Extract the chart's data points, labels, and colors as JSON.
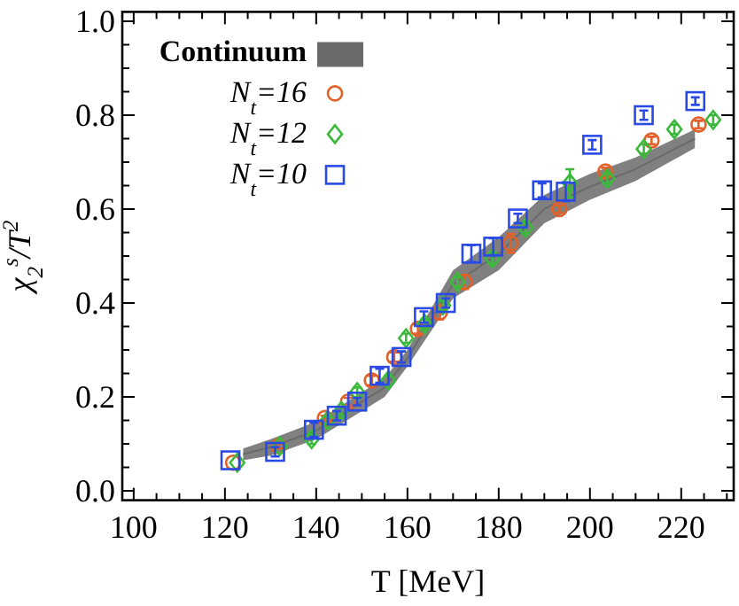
{
  "chart_data": {
    "type": "scatter",
    "xlabel": "T [MeV]",
    "ylabel": "χ$_{2}$$^{s}$/T$^{2}$",
    "legend": "top left",
    "xlim": [
      97.5,
      231.5
    ],
    "ylim": [
      -0.02,
      1.02
    ],
    "xticks": [
      100,
      {
        "value": 105,
        "label": null
      },
      {
        "value": 110,
        "label": null
      },
      {
        "value": 115,
        "label": null
      },
      120,
      {
        "value": 125,
        "label": null
      },
      {
        "value": 130,
        "label": null
      },
      {
        "value": 135,
        "label": null
      },
      140,
      {
        "value": 145,
        "label": null
      },
      {
        "value": 150,
        "label": null
      },
      {
        "value": 155,
        "label": null
      },
      160,
      {
        "value": 165,
        "label": null
      },
      {
        "value": 170,
        "label": null
      },
      {
        "value": 175,
        "label": null
      },
      180,
      {
        "value": 185,
        "label": null
      },
      {
        "value": 190,
        "label": null
      },
      {
        "value": 195,
        "label": null
      },
      200,
      {
        "value": 205,
        "label": null
      },
      {
        "value": 210,
        "label": null
      },
      {
        "value": 215,
        "label": null
      },
      220,
      {
        "value": 225,
        "label": null
      },
      {
        "value": 230,
        "label": null
      }
    ],
    "yticks": [
      {
        "value": 0,
        "label": "0.0"
      },
      {
        "value": 0.05,
        "label": null
      },
      {
        "value": 0.1,
        "label": null
      },
      {
        "value": 0.15,
        "label": null
      },
      0.2,
      {
        "value": 0.25,
        "label": null
      },
      {
        "value": 0.3,
        "label": null
      },
      {
        "value": 0.35,
        "label": null
      },
      0.4,
      {
        "value": 0.45,
        "label": null
      },
      {
        "value": 0.5,
        "label": null
      },
      {
        "value": 0.55,
        "label": null
      },
      0.6,
      {
        "value": 0.65,
        "label": null
      },
      {
        "value": 0.7,
        "label": null
      },
      {
        "value": 0.75,
        "label": null
      },
      0.8,
      {
        "value": 0.85,
        "label": null
      },
      {
        "value": 0.9,
        "label": null
      },
      {
        "value": 0.95,
        "label": null
      },
      {
        "value": 1,
        "label": "1.0"
      }
    ],
    "series": [
      {
        "name": "Continuum",
        "type": "line",
        "color": "#6a6a6a",
        "x": [
          124,
          130,
          140,
          150,
          155,
          160,
          170,
          180,
          190,
          200,
          210,
          223
        ],
        "values": [
          0.078,
          0.093,
          0.128,
          0.19,
          0.22,
          0.283,
          0.44,
          0.505,
          0.6,
          0.648,
          0.685,
          0.75
        ],
        "lower": [
          0.065,
          0.075,
          0.11,
          0.17,
          0.2,
          0.265,
          0.41,
          0.47,
          0.57,
          0.62,
          0.66,
          0.73
        ],
        "upper": [
          0.09,
          0.11,
          0.147,
          0.21,
          0.24,
          0.3,
          0.47,
          0.54,
          0.63,
          0.675,
          0.71,
          0.77
        ]
      },
      {
        "name": "N$_{t}$=16",
        "color": "#e0622a",
        "marker": "circle",
        "x": [
          121.8,
          131.8,
          141.9,
          147,
          152.2,
          157.1,
          162.3,
          167.1,
          172.5,
          182.6,
          193.3,
          203.4,
          213.5,
          223.8
        ],
        "values": [
          0.06,
          0.095,
          0.155,
          0.19,
          0.235,
          0.285,
          0.345,
          0.38,
          0.445,
          0.527,
          0.6,
          0.68,
          0.746,
          0.78
        ],
        "errors": [
          null,
          0.005,
          0.005,
          0.008,
          0.01,
          0.01,
          0.01,
          0.015,
          0.015,
          0.02,
          0.008,
          0.008,
          0.008,
          0.008
        ]
      },
      {
        "name": "N$_{t}$=12",
        "color": "#3cb93c",
        "marker": "diamond",
        "x": [
          122.7,
          132,
          139,
          142.5,
          145.5,
          149,
          155.8,
          159.7,
          163.8,
          167.8,
          171,
          178.6,
          185.9,
          195.6,
          203.8,
          211.8,
          218.5,
          227
        ],
        "values": [
          0.06,
          0.095,
          0.11,
          0.15,
          0.17,
          0.21,
          0.235,
          0.325,
          0.355,
          0.395,
          0.445,
          0.495,
          0.56,
          0.655,
          0.665,
          0.728,
          0.77,
          0.79
        ],
        "errors": [
          null,
          null,
          0.01,
          0.008,
          0.008,
          0.01,
          0.01,
          0.01,
          0.01,
          0.01,
          0.01,
          0.012,
          0.012,
          0.03,
          0.01,
          0.01,
          0.01,
          0.01
        ]
      },
      {
        "name": "N$_{t}$=10",
        "color": "#2a4ae6",
        "marker": "square",
        "x": [
          121.2,
          131,
          139.5,
          144.5,
          149,
          153.9,
          158.7,
          163.6,
          168.4,
          174,
          178.8,
          184.2,
          189.5,
          194.7,
          200.5,
          211.8,
          223.1
        ],
        "values": [
          0.065,
          0.083,
          0.13,
          0.16,
          0.19,
          0.245,
          0.285,
          0.37,
          0.4,
          0.505,
          0.52,
          0.58,
          0.64,
          0.637,
          0.737,
          0.8,
          0.83
        ],
        "errors": [
          null,
          0.01,
          0.015,
          0.01,
          0.008,
          0.015,
          0.012,
          0.012,
          0.01,
          0.018,
          0.018,
          0.01,
          0.015,
          0.02,
          0.01,
          0.01,
          0.008
        ]
      }
    ]
  }
}
